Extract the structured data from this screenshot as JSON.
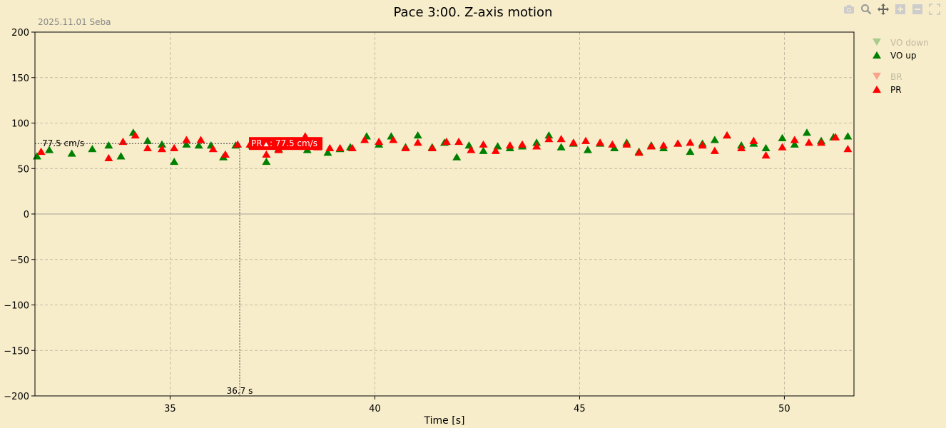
{
  "chart_data": {
    "type": "scatter",
    "title": "Pace 3:00. Z-axis motion",
    "subtitle": "2025.11.01 Seba",
    "xlabel": "Time [s]",
    "ylabel": "",
    "xlim": [
      31.7,
      51.7
    ],
    "ylim": [
      -200,
      200
    ],
    "xticks": [
      35,
      40,
      45,
      50
    ],
    "yticks": [
      -200,
      -150,
      -100,
      -50,
      0,
      50,
      100,
      150,
      200
    ],
    "grid": true,
    "legend_position": "right",
    "legend": [
      {
        "name": "VO down",
        "color": "#008000",
        "marker": "triangle-down",
        "visible": false
      },
      {
        "name": "VO up",
        "color": "#008000",
        "marker": "triangle-up",
        "visible": true
      },
      {
        "name": "BR",
        "color": "#ff0000",
        "marker": "triangle-down",
        "visible": false
      },
      {
        "name": "PR",
        "color": "#ff0000",
        "marker": "triangle-up",
        "visible": true
      }
    ],
    "series": [
      {
        "name": "VO up",
        "color": "#008000",
        "x": [
          31.75,
          32.05,
          32.6,
          33.1,
          33.5,
          33.8,
          34.1,
          34.45,
          34.8,
          35.1,
          35.4,
          35.7,
          36.0,
          36.3,
          36.6,
          37.0,
          37.35,
          37.65,
          38.0,
          38.35,
          38.6,
          38.85,
          39.15,
          39.4,
          39.8,
          40.1,
          40.4,
          40.75,
          41.05,
          41.4,
          41.7,
          42.0,
          42.3,
          42.65,
          43.0,
          43.3,
          43.6,
          43.95,
          44.25,
          44.55,
          44.85,
          45.2,
          45.5,
          45.85,
          46.15,
          46.45,
          46.75,
          47.05,
          47.4,
          47.7,
          48.0,
          48.3,
          48.6,
          48.95,
          49.25,
          49.55,
          49.95,
          50.25,
          50.55,
          50.9,
          51.2,
          51.55
        ],
        "y": [
          64,
          71,
          67,
          72,
          76,
          64,
          90,
          81,
          77,
          58,
          77,
          76,
          76,
          63,
          76,
          76,
          58,
          72,
          81,
          71,
          75,
          68,
          72,
          74,
          86,
          77,
          86,
          74,
          87,
          74,
          79,
          63,
          76,
          70,
          75,
          73,
          75,
          79,
          87,
          74,
          78,
          71,
          78,
          73,
          79,
          69,
          76,
          73,
          78,
          69,
          78,
          82,
          87,
          76,
          78,
          73,
          84,
          77,
          90,
          81,
          85,
          86
        ]
      },
      {
        "name": "PR",
        "color": "#ff0000",
        "x": [
          31.85,
          33.5,
          33.85,
          34.15,
          34.45,
          34.8,
          35.1,
          35.4,
          35.75,
          36.05,
          36.35,
          36.65,
          36.95,
          37.35,
          37.65,
          38.0,
          38.3,
          38.6,
          38.9,
          39.15,
          39.45,
          39.75,
          40.1,
          40.45,
          40.75,
          41.05,
          41.4,
          41.75,
          42.05,
          42.35,
          42.65,
          42.95,
          43.3,
          43.6,
          43.95,
          44.25,
          44.55,
          44.85,
          45.15,
          45.5,
          45.8,
          46.15,
          46.45,
          46.75,
          47.05,
          47.4,
          47.7,
          48.0,
          48.3,
          48.6,
          48.95,
          49.25,
          49.55,
          49.95,
          50.25,
          50.6,
          50.9,
          51.25,
          51.55
        ],
        "y": [
          69,
          62,
          80,
          87,
          73,
          72,
          73,
          82,
          82,
          72,
          66,
          77,
          77,
          66,
          71,
          77,
          86,
          74,
          73,
          73,
          73,
          82,
          80,
          82,
          73,
          79,
          73,
          80,
          80,
          71,
          77,
          70,
          76,
          77,
          75,
          83,
          83,
          79,
          81,
          79,
          77,
          77,
          68,
          75,
          76,
          78,
          79,
          76,
          70,
          87,
          73,
          81,
          65,
          74,
          82,
          79,
          79,
          85,
          72
        ]
      }
    ],
    "hover": {
      "y_label": "77.5 cm/s",
      "x_label": "36.7 s",
      "tooltip_name": "PR",
      "tooltip_value": ": 77.5 cm/s",
      "x": 36.7,
      "y": 77.5
    },
    "colors": {
      "background": "#f7edca",
      "grid": "#b7b09a",
      "vo": "#008000",
      "pr": "#ff0000"
    }
  },
  "toolbar": {
    "icons": [
      "camera-icon",
      "zoom-icon",
      "pan-icon",
      "zoom-in-icon",
      "zoom-out-icon",
      "autoscale-icon"
    ]
  }
}
